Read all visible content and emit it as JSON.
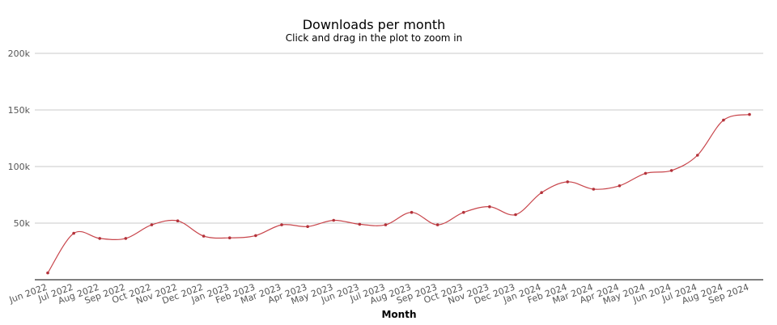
{
  "chart_data": {
    "type": "line",
    "title": "Downloads per month",
    "subtitle": "Click and drag in the plot to zoom in",
    "xlabel": "Month",
    "ylabel": "",
    "ylim": [
      0,
      200000
    ],
    "yticks": [
      50000,
      100000,
      150000,
      200000
    ],
    "ytick_labels": [
      "50k",
      "100k",
      "150k",
      "200k"
    ],
    "grid": true,
    "categories": [
      "Jun 2022",
      "Jul 2022",
      "Aug 2022",
      "Sep 2022",
      "Oct 2022",
      "Nov 2022",
      "Dec 2022",
      "Jan 2023",
      "Feb 2023",
      "Mar 2023",
      "Apr 2023",
      "May 2023",
      "Jun 2023",
      "Jul 2023",
      "Aug 2023",
      "Sep 2023",
      "Oct 2023",
      "Nov 2023",
      "Dec 2023",
      "Jan 2024",
      "Feb 2024",
      "Mar 2024",
      "Apr 2024",
      "May 2024",
      "Jun 2024",
      "Jul 2024",
      "Aug 2024",
      "Sep 2024"
    ],
    "series": [
      {
        "color": "#c8454b",
        "values": [
          6000,
          41000,
          36500,
          36500,
          48500,
          52000,
          38500,
          37000,
          39000,
          48500,
          47000,
          52500,
          49000,
          48500,
          59500,
          48500,
          59500,
          64500,
          57500,
          77000,
          86500,
          80000,
          83000,
          94000,
          96500,
          110000,
          141000,
          146000
        ]
      }
    ]
  }
}
